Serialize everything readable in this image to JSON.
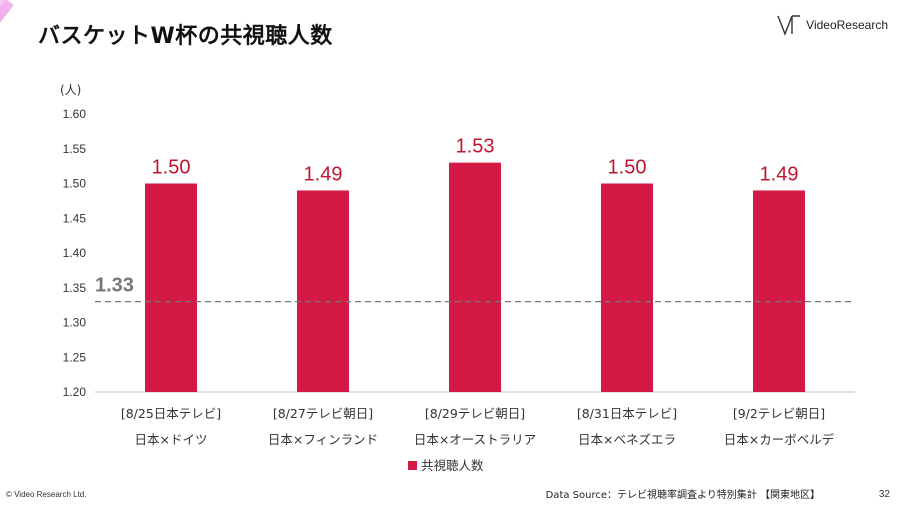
{
  "header": {
    "title": "バスケットW杯の共視聴人数",
    "logo_text": "VideoResearch"
  },
  "footer": {
    "copyright": "© Video Research Ltd.",
    "source": "Data Source：テレビ視聴率調査より特別集計 【関東地区】",
    "page_number": "32"
  },
  "chart_data": {
    "type": "bar",
    "title": "",
    "ylabel": "(人)",
    "ylim": [
      1.2,
      1.6
    ],
    "yticks": [
      "1.60",
      "1.55",
      "1.50",
      "1.45",
      "1.40",
      "1.35",
      "1.30",
      "1.25",
      "1.20"
    ],
    "categories": [
      {
        "line1": "[8/25日本テレビ]",
        "line2": "日本×ドイツ"
      },
      {
        "line1": "[8/27テレビ朝日]",
        "line2": "日本×フィンランド"
      },
      {
        "line1": "[8/29テレビ朝日]",
        "line2": "日本×オーストラリア"
      },
      {
        "line1": "[8/31日本テレビ]",
        "line2": "日本×ベネズエラ"
      },
      {
        "line1": "[9/2テレビ朝日]",
        "line2": "日本×カーボベルデ"
      }
    ],
    "series": [
      {
        "name": "共視聴人数",
        "values": [
          1.5,
          1.49,
          1.53,
          1.5,
          1.49
        ],
        "color": "#d31a45"
      }
    ],
    "data_labels": [
      "1.50",
      "1.49",
      "1.53",
      "1.50",
      "1.49"
    ],
    "reference_line": {
      "value": 1.33,
      "label": "1.33",
      "color": "#777777"
    },
    "legend": "bottom",
    "grid": false
  }
}
